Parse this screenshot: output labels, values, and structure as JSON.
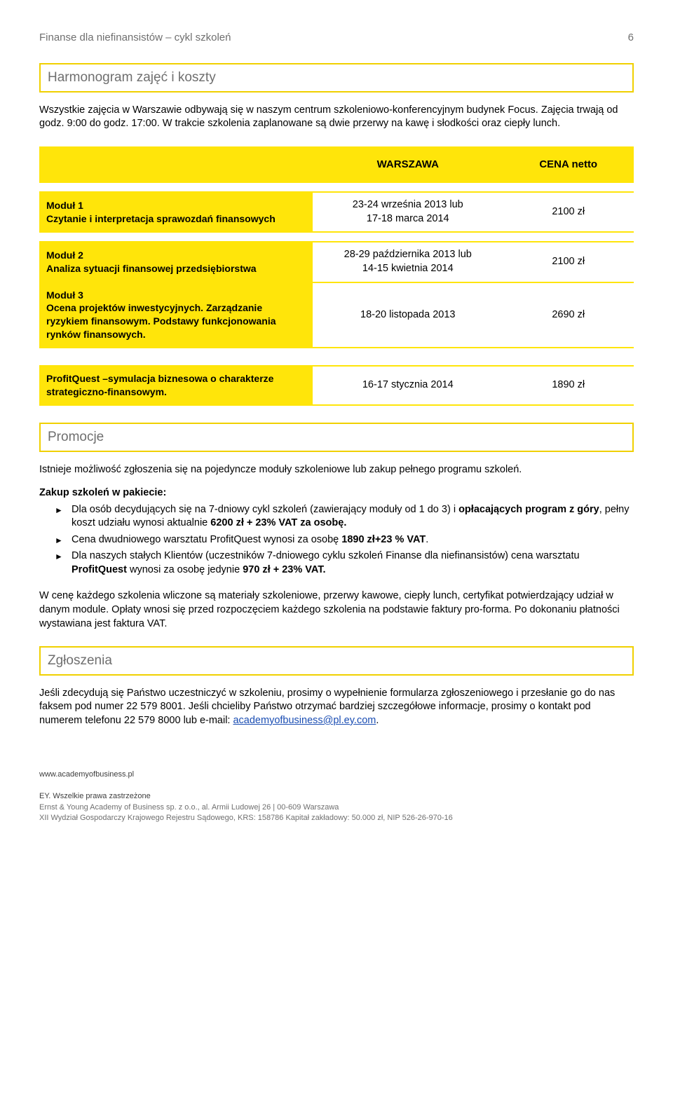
{
  "header": {
    "title": "Finanse dla niefinansistów – cykl szkoleń",
    "page": "6"
  },
  "section1": {
    "title": "Harmonogram zajęć i koszty",
    "intro": "Wszystkie zajęcia w Warszawie odbywają się w naszym centrum szkoleniowo-konferencyjnym budynek Focus. Zajęcia trwają od godz. 9:00 do godz. 17:00. W trakcie szkolenia zaplanowane są dwie przerwy na kawę i słodkości oraz ciepły lunch."
  },
  "table": {
    "head_col2": "WARSZAWA",
    "head_col3": "CENA netto",
    "rows": [
      {
        "label": "Moduł 1\nCzytanie i interpretacja sprawozdań finansowych",
        "dates": "23-24 września 2013 lub\n17-18 marca 2014",
        "price": "2100 zł"
      },
      {
        "label": "Moduł 2\nAnaliza sytuacji finansowej przedsiębiorstwa",
        "dates": "28-29 października 2013 lub\n14-15 kwietnia 2014",
        "price": "2100 zł"
      },
      {
        "label": "Moduł 3\nOcena projektów inwestycyjnych. Zarządzanie ryzykiem finansowym. Podstawy funkcjonowania rynków finansowych.",
        "dates": "18-20 listopada 2013",
        "price": "2690 zł"
      },
      {
        "label": "ProfitQuest –symulacja biznesowa o charakterze strategiczno-finansowym.",
        "dates": "16-17 stycznia 2014",
        "price": "1890 zł"
      }
    ]
  },
  "section2": {
    "title": "Promocje",
    "p1": "Istnieje możliwość zgłoszenia się na pojedyncze moduły szkoleniowe lub zakup pełnego programu szkoleń.",
    "p2_lead": "Zakup szkoleń w pakiecie:",
    "bullets": [
      "Dla osób decydujących się na 7-dniowy cykl szkoleń (zawierający moduły od 1 do 3) i <b>opłacających program z góry</b>, pełny koszt udziału wynosi aktualnie <b>6200 zł + 23% VAT za osobę.</b>",
      "Cena dwudniowego warsztatu ProfitQuest wynosi za osobę <b>1890 zł+23 % VAT</b>.",
      "Dla naszych stałych Klientów (uczestników 7-dniowego cyklu szkoleń Finanse dla niefinansistów) cena warsztatu <b>ProfitQuest</b> wynosi za osobę jedynie <b>970 zł + 23% VAT.</b>"
    ],
    "p3": "W cenę każdego szkolenia wliczone są materiały szkoleniowe, przerwy kawowe, ciepły lunch, certyfikat potwierdzający udział w danym module. Opłaty wnosi się przed rozpoczęciem każdego szkolenia na podstawie faktury pro-forma. Po dokonaniu płatności wystawiana jest faktura VAT."
  },
  "section3": {
    "title": "Zgłoszenia",
    "p1_a": "Jeśli zdecydują się Państwo uczestniczyć w szkoleniu, prosimy o wypełnienie formularza zgłoszeniowego i przesłanie go do nas faksem pod numer 22 579 8001. Jeśli chcieliby Państwo otrzymać bardziej szczegółowe informacje, prosimy o kontakt pod numerem telefonu 22 579 8000 lub e-mail: ",
    "email": "academyofbusiness@pl.ey.com",
    "p1_b": "."
  },
  "footer": {
    "l1": "www.academyofbusiness.pl",
    "l2": "EY. Wszelkie prawa zastrzeżone",
    "l3": "Ernst & Young Academy of Business sp. z o.o., al. Armii Ludowej 26 | 00-609 Warszawa",
    "l4": "XII Wydział Gospodarczy Krajowego Rejestru Sądowego, KRS: 158786 Kapitał zakładowy: 50.000 zł, NIP 526-26-970-16"
  }
}
